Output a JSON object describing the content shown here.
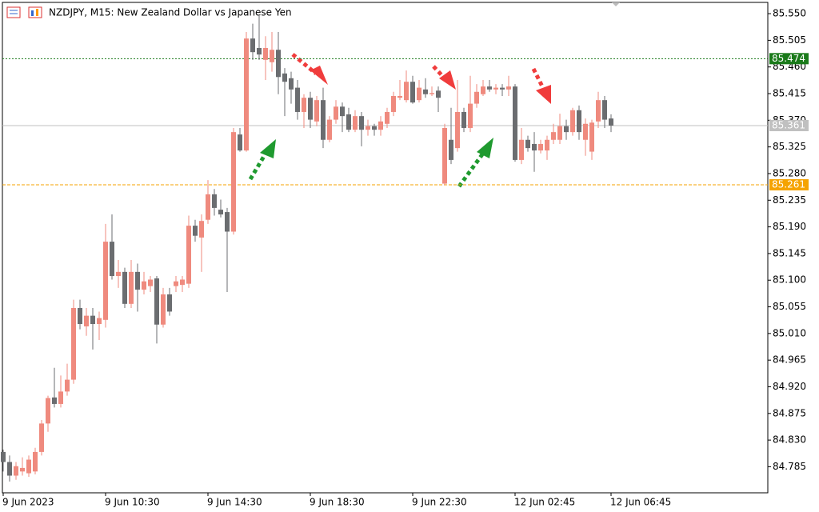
{
  "chart_data": {
    "type": "candlestick",
    "title": "NZDJPY, M15:  New Zealand Dollar vs Japanese Yen",
    "up_color": "#ef8a7e",
    "down_color": "#6b6d70",
    "categories": [
      "9 Jun 2023",
      null,
      null,
      null,
      null,
      null,
      null,
      null,
      null,
      null,
      null,
      null,
      null,
      null,
      null,
      null,
      "9 Jun 10:30",
      null,
      null,
      null,
      null,
      null,
      null,
      null,
      null,
      null,
      null,
      null,
      null,
      null,
      null,
      null,
      "9 Jun 14:30",
      null,
      null,
      null,
      null,
      null,
      null,
      null,
      null,
      null,
      null,
      null,
      null,
      null,
      null,
      null,
      "9 Jun 18:30",
      null,
      null,
      null,
      null,
      null,
      null,
      null,
      null,
      null,
      null,
      null,
      null,
      null,
      null,
      null,
      "9 Jun 22:30",
      null,
      null,
      null,
      null,
      null,
      null,
      null,
      null,
      null,
      null,
      null,
      null,
      null,
      null,
      null,
      "12 Jun 02:45",
      null,
      null,
      null,
      null,
      null,
      null,
      null,
      null,
      null,
      null,
      null,
      null,
      null,
      null,
      "12 Jun 06:45"
    ],
    "open": [
      84.81,
      84.793,
      84.77,
      84.777,
      84.774,
      84.777,
      84.81,
      84.858,
      84.902,
      84.891,
      84.912,
      84.932,
      85.053,
      85.022,
      85.04,
      85.026,
      85.033,
      85.165,
      85.107,
      85.114,
      85.06,
      85.114,
      85.084,
      85.09,
      85.103,
      85.025,
      85.076,
      85.09,
      85.092,
      85.094,
      85.192,
      85.172,
      85.202,
      85.245,
      85.219,
      85.215,
      85.182,
      85.346,
      85.319,
      85.508,
      85.492,
      85.472,
      85.468,
      85.489,
      85.449,
      85.441,
      85.425,
      85.384,
      85.408,
      85.368,
      85.404,
      85.337,
      85.371,
      85.393,
      85.38,
      85.354,
      85.377,
      85.354,
      85.36,
      85.354,
      85.364,
      85.384,
      85.408,
      85.404,
      85.435,
      85.404,
      85.422,
      85.414,
      85.42,
      85.263,
      85.337,
      85.323,
      85.384,
      85.357,
      85.398,
      85.414,
      85.427,
      85.422,
      85.425,
      85.422,
      85.427,
      85.303,
      85.337,
      85.33,
      85.319,
      85.319,
      85.337,
      85.337,
      85.36,
      85.35,
      85.387,
      85.337,
      85.317,
      85.368,
      85.404,
      85.373
    ],
    "high": [
      84.814,
      84.804,
      84.793,
      84.801,
      84.804,
      84.817,
      84.864,
      84.905,
      84.952,
      84.939,
      84.959,
      85.067,
      85.067,
      85.053,
      85.053,
      85.047,
      85.195,
      85.211,
      85.134,
      85.121,
      85.134,
      85.128,
      85.114,
      85.107,
      85.107,
      85.087,
      85.087,
      85.107,
      85.107,
      85.209,
      85.202,
      85.211,
      85.269,
      85.254,
      85.236,
      85.222,
      85.357,
      85.357,
      85.519,
      85.533,
      85.546,
      85.512,
      85.519,
      85.519,
      85.458,
      85.452,
      85.438,
      85.414,
      85.418,
      85.411,
      85.425,
      85.377,
      85.404,
      85.4,
      85.391,
      85.387,
      85.384,
      85.371,
      85.364,
      85.377,
      85.391,
      85.418,
      85.438,
      85.454,
      85.445,
      85.438,
      85.441,
      85.427,
      85.427,
      85.364,
      85.391,
      85.438,
      85.391,
      85.445,
      85.431,
      85.438,
      85.438,
      85.431,
      85.431,
      85.445,
      85.431,
      85.357,
      85.344,
      85.35,
      85.337,
      85.344,
      85.364,
      85.381,
      85.371,
      85.391,
      85.395,
      85.373,
      85.371,
      85.418,
      85.411,
      85.38
    ],
    "low": [
      84.777,
      84.76,
      84.763,
      84.77,
      84.768,
      84.772,
      84.804,
      84.844,
      84.885,
      84.885,
      84.905,
      84.925,
      85.017,
      85.006,
      84.983,
      84.999,
      85.02,
      85.101,
      85.087,
      85.053,
      85.053,
      85.047,
      85.076,
      85.08,
      84.993,
      85.02,
      85.04,
      85.08,
      85.08,
      85.087,
      85.165,
      85.114,
      85.195,
      85.209,
      85.206,
      85.08,
      85.177,
      85.317,
      85.317,
      85.472,
      85.472,
      85.438,
      85.452,
      85.414,
      85.377,
      85.398,
      85.371,
      85.357,
      85.357,
      85.36,
      85.323,
      85.333,
      85.364,
      85.35,
      85.35,
      85.35,
      85.326,
      85.344,
      85.344,
      85.344,
      85.357,
      85.377,
      85.404,
      85.4,
      85.398,
      85.4,
      85.408,
      85.411,
      85.384,
      85.26,
      85.296,
      85.317,
      85.35,
      85.35,
      85.391,
      85.411,
      85.418,
      85.414,
      85.411,
      85.411,
      85.3,
      85.296,
      85.317,
      85.283,
      85.314,
      85.303,
      85.33,
      85.33,
      85.337,
      85.344,
      85.337,
      85.31,
      85.303,
      85.357,
      85.357,
      85.35
    ],
    "close": [
      84.793,
      84.77,
      84.786,
      84.783,
      84.797,
      84.81,
      84.858,
      84.901,
      84.891,
      84.912,
      84.932,
      85.053,
      85.026,
      85.04,
      85.026,
      85.036,
      85.165,
      85.107,
      85.114,
      85.06,
      85.114,
      85.084,
      85.098,
      85.101,
      85.025,
      85.076,
      85.047,
      85.098,
      85.101,
      85.192,
      85.175,
      85.2,
      85.245,
      85.222,
      85.211,
      85.182,
      85.35,
      85.319,
      85.508,
      85.485,
      85.481,
      85.492,
      85.489,
      85.443,
      85.435,
      85.422,
      85.384,
      85.408,
      85.371,
      85.404,
      85.337,
      85.371,
      85.393,
      85.377,
      85.354,
      85.377,
      85.354,
      85.36,
      85.354,
      85.368,
      85.384,
      85.411,
      85.411,
      85.435,
      85.4,
      85.425,
      85.414,
      85.416,
      85.408,
      85.357,
      85.303,
      85.384,
      85.357,
      85.398,
      85.418,
      85.427,
      85.422,
      85.425,
      85.422,
      85.427,
      85.303,
      85.337,
      85.323,
      85.319,
      85.33,
      85.337,
      85.35,
      85.36,
      85.35,
      85.387,
      85.35,
      85.364,
      85.366,
      85.404,
      85.371,
      85.361
    ],
    "ylim": [
      84.741,
      85.569
    ],
    "yticks": [
      {
        "value": 85.55,
        "label": "85.550"
      },
      {
        "value": 85.505,
        "label": "85.505"
      },
      {
        "value": 85.46,
        "label": "85.460"
      },
      {
        "value": 85.415,
        "label": "85.415"
      },
      {
        "value": 85.37,
        "label": "85.370"
      },
      {
        "value": 85.325,
        "label": "85.325"
      },
      {
        "value": 85.28,
        "label": "85.280"
      },
      {
        "value": 85.235,
        "label": "85.235"
      },
      {
        "value": 85.19,
        "label": "85.190"
      },
      {
        "value": 85.145,
        "label": "85.145"
      },
      {
        "value": 85.1,
        "label": "85.100"
      },
      {
        "value": 85.055,
        "label": "85.055"
      },
      {
        "value": 85.01,
        "label": "85.010"
      },
      {
        "value": 84.965,
        "label": "84.965"
      },
      {
        "value": 84.92,
        "label": "84.920"
      },
      {
        "value": 84.875,
        "label": "84.875"
      },
      {
        "value": 84.83,
        "label": "84.830"
      },
      {
        "value": 84.785,
        "label": "84.785"
      }
    ],
    "levels": [
      {
        "value": 85.474,
        "color": "#1a7a1a",
        "style": "dotted"
      },
      {
        "value": 85.361,
        "color": "#c0c0c0",
        "style": "solid"
      },
      {
        "value": 85.261,
        "color": "#f5a300",
        "style": "dashed"
      }
    ]
  }
}
